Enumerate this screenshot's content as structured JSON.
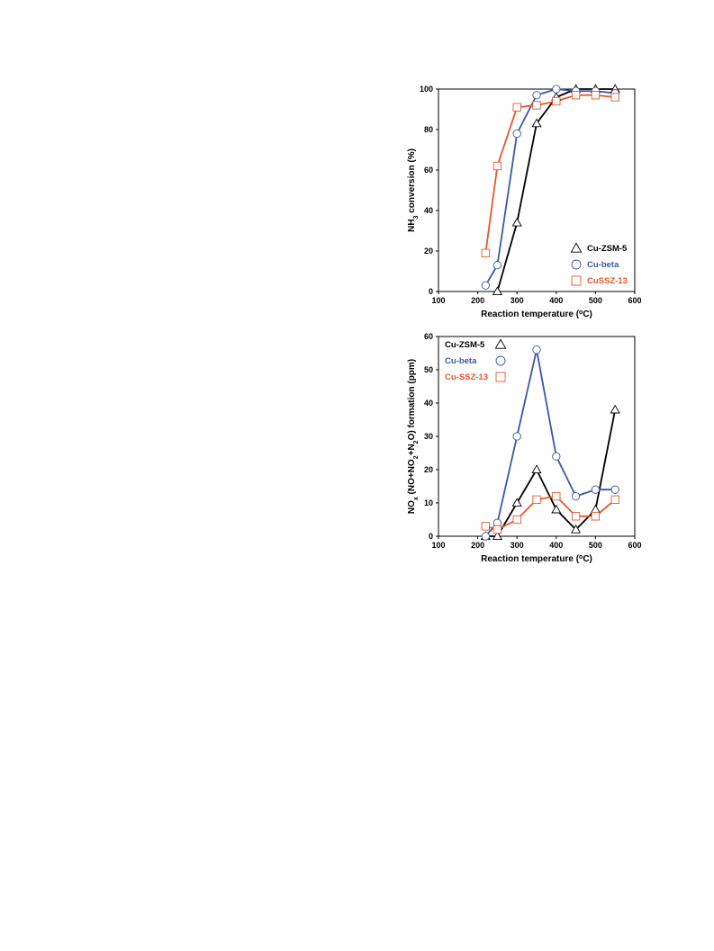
{
  "colors": {
    "Cu-ZSM-5": "#000000",
    "Cu-beta": "#3b57a8",
    "CuSSZ-13": "#e8552b"
  },
  "chart_data": [
    {
      "type": "line",
      "xlabel": "Reaction temperature (oC)",
      "xlabel_parts": [
        "Reaction temperature (",
        "o",
        "C)"
      ],
      "ylabel": "NH3 conversion (%)",
      "ylabel_parts": [
        "NH",
        "3",
        " conversion (%)"
      ],
      "xlim": [
        100,
        600
      ],
      "ylim": [
        0,
        100
      ],
      "xticks": [
        100,
        200,
        300,
        400,
        500,
        600
      ],
      "yticks": [
        0,
        20,
        40,
        60,
        80,
        100
      ],
      "legend_placement": "bottom-right",
      "series": [
        {
          "name": "Cu-ZSM-5",
          "marker": "triangle",
          "color": "#000000",
          "x": [
            250,
            300,
            350,
            400,
            450,
            500,
            550
          ],
          "y": [
            0,
            34,
            83,
            96,
            100,
            100,
            100
          ]
        },
        {
          "name": "Cu-beta",
          "marker": "circle",
          "color": "#3b57a8",
          "x": [
            220,
            250,
            300,
            350,
            400,
            450,
            500,
            550
          ],
          "y": [
            3,
            13,
            78,
            97,
            100,
            99,
            99,
            98
          ]
        },
        {
          "name": "CuSSZ-13",
          "marker": "square",
          "color": "#e8552b",
          "x": [
            220,
            250,
            300,
            350,
            400,
            450,
            500,
            550
          ],
          "y": [
            19,
            62,
            91,
            92,
            94,
            97,
            97,
            96
          ]
        }
      ]
    },
    {
      "type": "line",
      "xlabel": "Reaction temperature (oC)",
      "xlabel_parts": [
        "Reaction temperature (",
        "o",
        "C)"
      ],
      "ylabel": "NOx (NO+NO2+N2O) formation (ppm)",
      "ylabel_parts": [
        "NO",
        "x",
        " (NO+NO",
        "2",
        "+N",
        "2",
        "O) formation (ppm)"
      ],
      "xlim": [
        100,
        600
      ],
      "ylim": [
        0,
        60
      ],
      "xticks": [
        100,
        200,
        300,
        400,
        500,
        600
      ],
      "yticks": [
        0,
        10,
        20,
        30,
        40,
        50,
        60
      ],
      "legend_placement": "top-left",
      "series": [
        {
          "name": "Cu-ZSM-5",
          "marker": "triangle",
          "color": "#000000",
          "x": [
            220,
            250,
            300,
            350,
            400,
            450,
            500,
            550
          ],
          "y": [
            0,
            0,
            10,
            20,
            8,
            2,
            8,
            38
          ]
        },
        {
          "name": "Cu-beta",
          "marker": "circle",
          "color": "#3b57a8",
          "x": [
            220,
            250,
            300,
            350,
            400,
            450,
            500,
            550
          ],
          "y": [
            0,
            4,
            30,
            56,
            24,
            12,
            14,
            14
          ]
        },
        {
          "name": "Cu-SSZ-13",
          "marker": "square",
          "color": "#e8552b",
          "x": [
            220,
            250,
            300,
            350,
            400,
            450,
            500,
            550
          ],
          "y": [
            3,
            2,
            5,
            11,
            12,
            6,
            6,
            11
          ]
        }
      ]
    }
  ]
}
